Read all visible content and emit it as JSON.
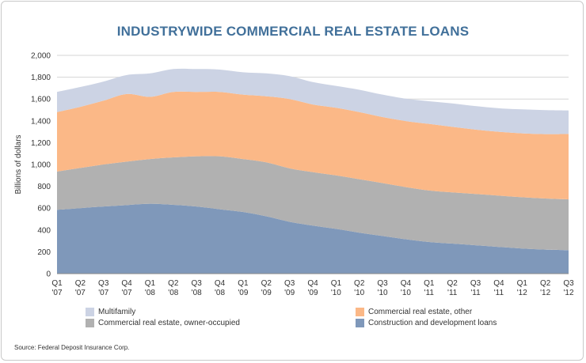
{
  "chart_data": {
    "type": "area",
    "stacked": true,
    "title": "INDUSTRYWIDE COMMERCIAL REAL ESTATE LOANS",
    "ylabel": "Billions of dollars",
    "xlabel": "",
    "ylim": [
      0,
      2000
    ],
    "yticks": [
      0,
      200,
      400,
      600,
      800,
      1000,
      1200,
      1400,
      1600,
      1800,
      2000
    ],
    "ytick_labels": [
      "0",
      "200",
      "400",
      "600",
      "800",
      "1,000",
      "1,200",
      "1,400",
      "1,600",
      "1,800",
      "2,000"
    ],
    "categories": [
      [
        "Q1",
        "'07"
      ],
      [
        "Q2",
        "'07"
      ],
      [
        "Q3",
        "'07"
      ],
      [
        "Q4",
        "'07"
      ],
      [
        "Q1",
        "'08"
      ],
      [
        "Q2",
        "'08"
      ],
      [
        "Q3",
        "'08"
      ],
      [
        "Q4",
        "'08"
      ],
      [
        "Q1",
        "'09"
      ],
      [
        "Q2",
        "'09"
      ],
      [
        "Q3",
        "'09"
      ],
      [
        "Q4",
        "'09"
      ],
      [
        "Q1",
        "'10"
      ],
      [
        "Q2",
        "'10"
      ],
      [
        "Q3",
        "'10"
      ],
      [
        "Q4",
        "'10"
      ],
      [
        "Q1",
        "'11"
      ],
      [
        "Q2",
        "'11"
      ],
      [
        "Q3",
        "'11"
      ],
      [
        "Q4",
        "'11"
      ],
      [
        "Q1",
        "'12"
      ],
      [
        "Q2",
        "'12"
      ],
      [
        "Q3",
        "'12"
      ]
    ],
    "grid": true,
    "series": [
      {
        "name": "Construction and development loans",
        "color": "#7f98ba",
        "values": [
          585,
          600,
          615,
          628,
          640,
          630,
          615,
          590,
          565,
          525,
          475,
          440,
          410,
          375,
          345,
          315,
          290,
          275,
          260,
          245,
          230,
          220,
          215
        ]
      },
      {
        "name": "Commercial real estate, owner-occupied",
        "color": "#b1b1b1",
        "values": [
          350,
          368,
          385,
          398,
          410,
          435,
          460,
          485,
          485,
          495,
          490,
          490,
          490,
          490,
          485,
          478,
          472,
          470,
          470,
          470,
          470,
          468,
          465
        ]
      },
      {
        "name": "Commercial real estate, other",
        "color": "#fbb887",
        "values": [
          545,
          560,
          585,
          620,
          570,
          600,
          590,
          590,
          590,
          605,
          635,
          620,
          620,
          615,
          605,
          605,
          610,
          600,
          590,
          585,
          585,
          590,
          600
        ]
      },
      {
        "name": "Multifamily",
        "color": "#ccd3e4",
        "values": [
          185,
          182,
          175,
          174,
          215,
          210,
          210,
          205,
          205,
          210,
          210,
          205,
          200,
          205,
          205,
          205,
          208,
          215,
          215,
          215,
          220,
          220,
          215
        ]
      }
    ],
    "legend": [
      {
        "label": "Multifamily",
        "color": "#ccd3e4"
      },
      {
        "label": "Commercial real estate, other",
        "color": "#fbb887"
      },
      {
        "label": "Commercial real estate, owner-occupied",
        "color": "#b1b1b1"
      },
      {
        "label": "Construction and development loans",
        "color": "#7f98ba"
      }
    ],
    "legend_position": "bottom"
  },
  "source": "Source: Federal Deposit Insurance Corp."
}
